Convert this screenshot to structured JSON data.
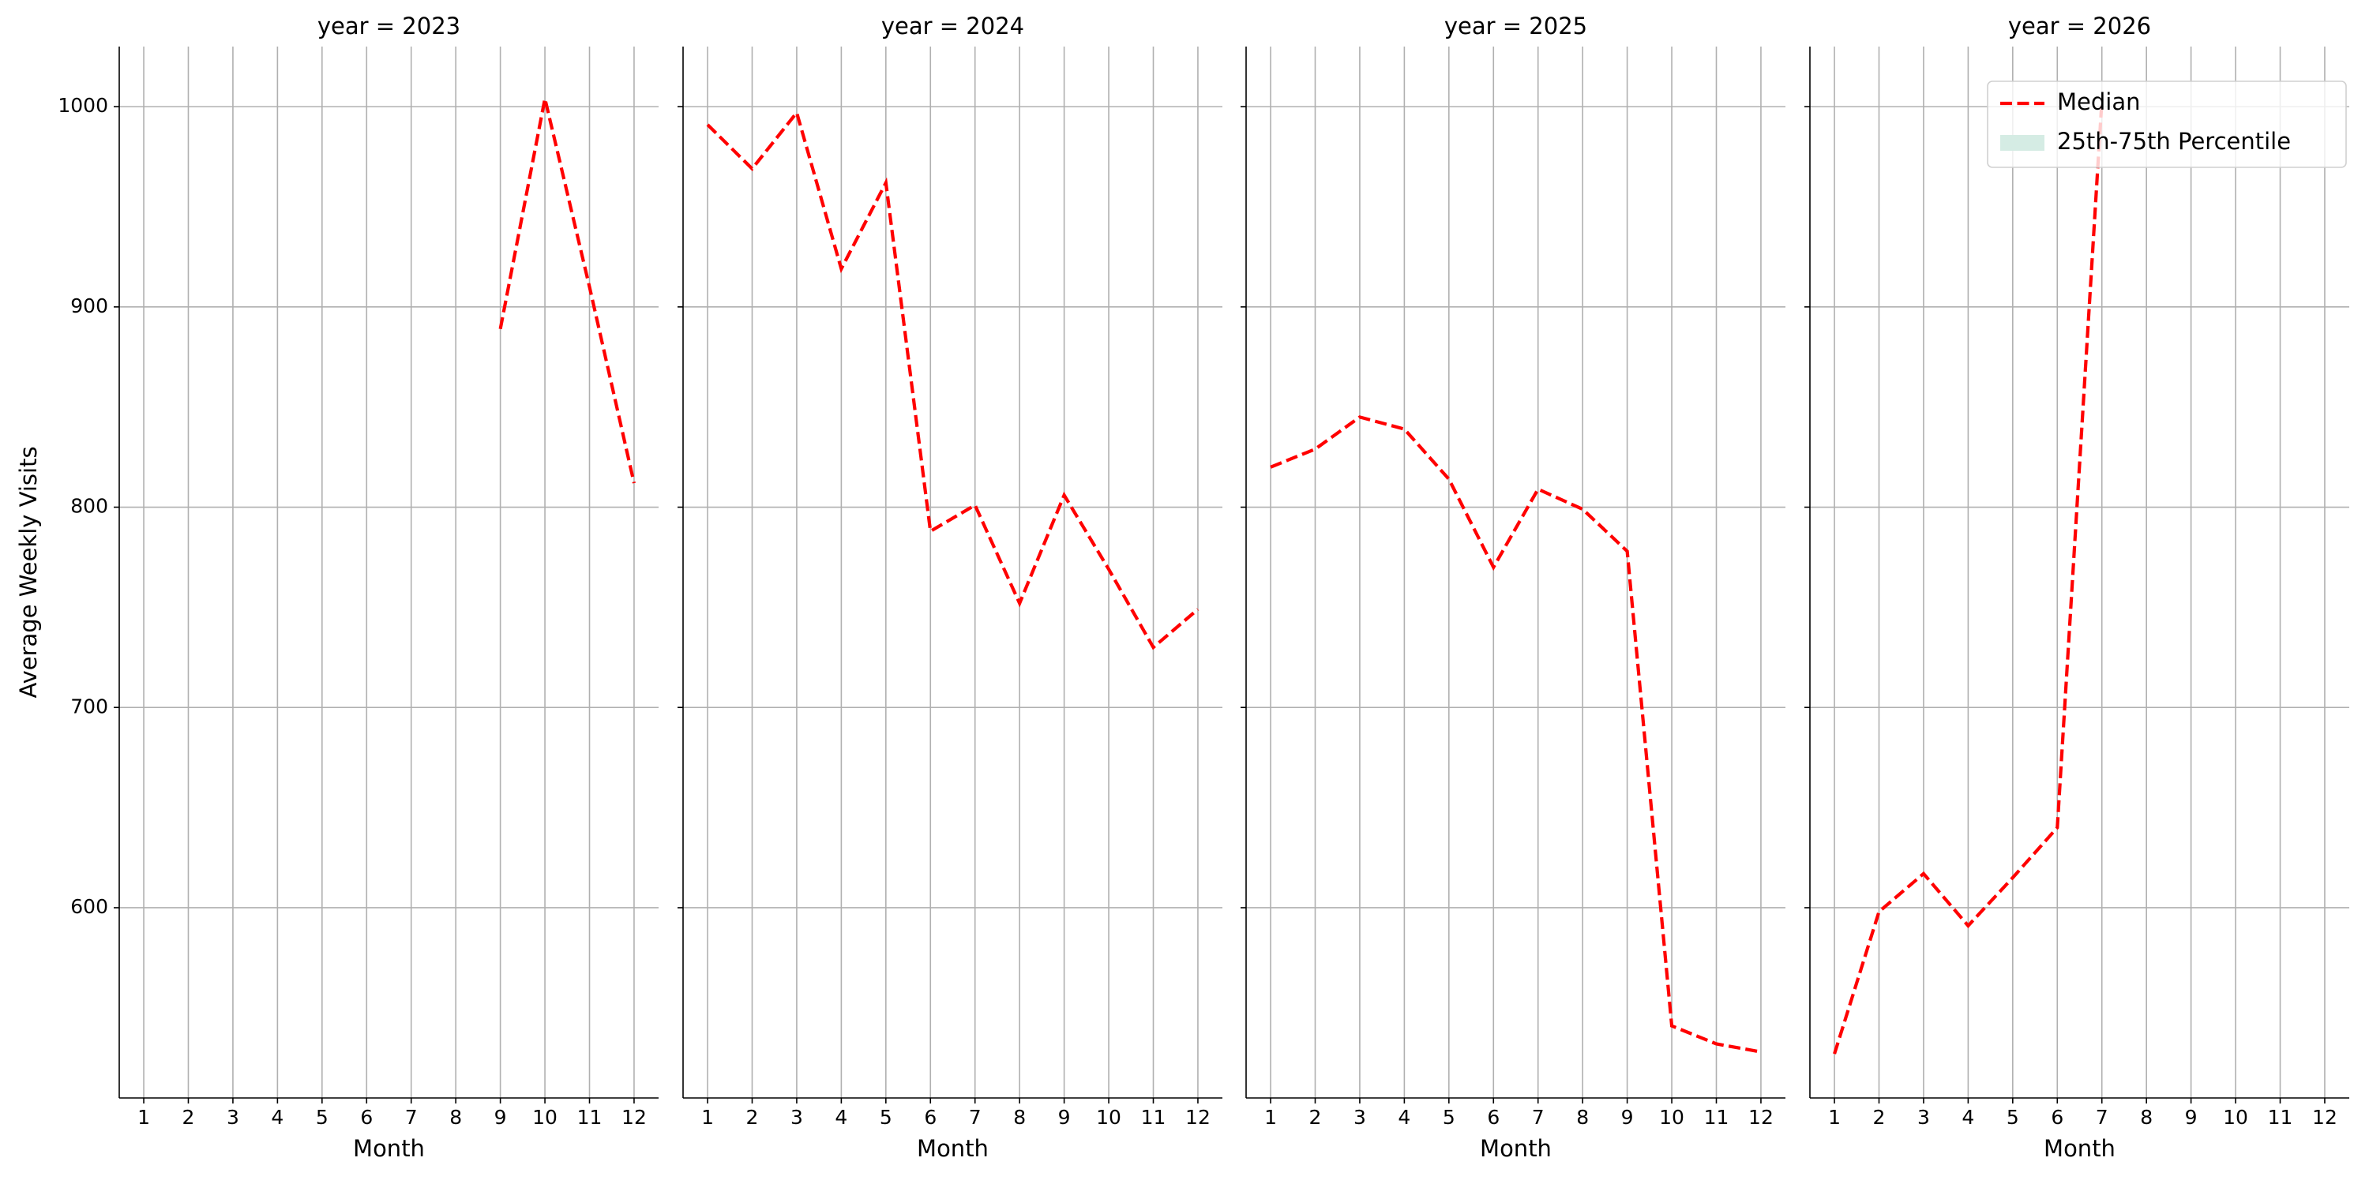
{
  "chart_data": [
    {
      "type": "line",
      "title": "year = 2023",
      "xlabel": "Month",
      "ylabel": "Average Weekly Visits",
      "x": [
        1,
        2,
        3,
        4,
        5,
        6,
        7,
        8,
        9,
        10,
        11,
        12
      ],
      "values": [
        null,
        null,
        null,
        null,
        null,
        null,
        null,
        null,
        889,
        1004,
        910,
        812
      ],
      "color": "#ff0000",
      "linestyle": "dashed",
      "xlim": [
        0.45,
        12.55
      ],
      "xticks": [
        1,
        2,
        3,
        4,
        5,
        6,
        7,
        8,
        9,
        10,
        11,
        12
      ],
      "ylim": [
        505,
        1030
      ],
      "yticks": [
        600,
        700,
        800,
        900,
        1000
      ],
      "grid": true,
      "sharey": false
    },
    {
      "type": "line",
      "title": "year = 2024",
      "xlabel": "Month",
      "x": [
        1,
        2,
        3,
        4,
        5,
        6,
        7,
        8,
        9,
        10,
        11,
        12
      ],
      "values": [
        991,
        969,
        997,
        919,
        962,
        788,
        801,
        752,
        806,
        769,
        730,
        749
      ],
      "color": "#ff0000",
      "linestyle": "dashed",
      "xlim": [
        0.45,
        12.55
      ],
      "xticks": [
        1,
        2,
        3,
        4,
        5,
        6,
        7,
        8,
        9,
        10,
        11,
        12
      ],
      "ylim": [
        505,
        1030
      ],
      "yticks": [
        600,
        700,
        800,
        900,
        1000
      ],
      "grid": true,
      "sharey": true
    },
    {
      "type": "line",
      "title": "year = 2025",
      "xlabel": "Month",
      "x": [
        1,
        2,
        3,
        4,
        5,
        6,
        7,
        8,
        9,
        10,
        11,
        12
      ],
      "values": [
        820,
        829,
        845,
        839,
        814,
        770,
        809,
        799,
        778,
        541,
        532,
        528
      ],
      "color": "#ff0000",
      "linestyle": "dashed",
      "xlim": [
        0.45,
        12.55
      ],
      "xticks": [
        1,
        2,
        3,
        4,
        5,
        6,
        7,
        8,
        9,
        10,
        11,
        12
      ],
      "ylim": [
        505,
        1030
      ],
      "yticks": [
        600,
        700,
        800,
        900,
        1000
      ],
      "grid": true,
      "sharey": true
    },
    {
      "type": "line",
      "title": "year = 2026",
      "xlabel": "Month",
      "x": [
        1,
        2,
        3,
        4,
        5,
        6,
        7,
        8,
        9,
        10,
        11,
        12
      ],
      "values": [
        527,
        598,
        617,
        591,
        615,
        640,
        1003,
        null,
        null,
        null,
        null,
        null
      ],
      "color": "#ff0000",
      "linestyle": "dashed",
      "xlim": [
        0.45,
        12.55
      ],
      "xticks": [
        1,
        2,
        3,
        4,
        5,
        6,
        7,
        8,
        9,
        10,
        11,
        12
      ],
      "ylim": [
        505,
        1030
      ],
      "yticks": [
        600,
        700,
        800,
        900,
        1000
      ],
      "grid": true,
      "sharey": true,
      "legend": {
        "loc": "upper right",
        "entries": [
          {
            "name": "Median",
            "color": "#ff0000",
            "kind": "line"
          },
          {
            "name": "25th-75th Percentile",
            "color": "#d5ece4",
            "kind": "patch"
          }
        ]
      }
    }
  ]
}
